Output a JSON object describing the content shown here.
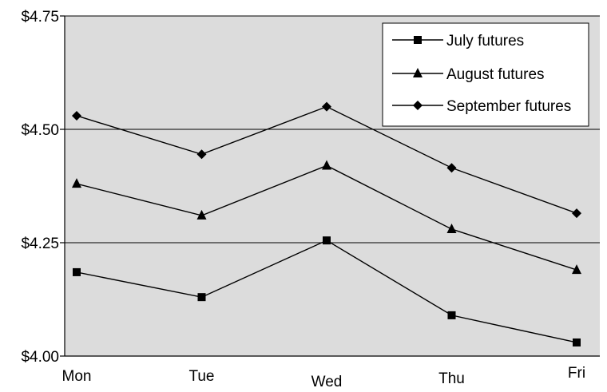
{
  "chart_data": {
    "type": "line",
    "categories": [
      "Mon",
      "Tue",
      "Wed",
      "Thu",
      "Fri"
    ],
    "ylim": [
      4.0,
      4.75
    ],
    "yticks": [
      4.0,
      4.25,
      4.5,
      4.75
    ],
    "ytick_labels": [
      "$4.00",
      "$4.25",
      "$4.50",
      "$4.75"
    ],
    "grid": true,
    "plot_background": "#dcdcdc",
    "line_color": "#000000",
    "legend_position": "top-right",
    "series": [
      {
        "name": "July futures",
        "marker": "square",
        "values": [
          4.185,
          4.13,
          4.255,
          4.09,
          4.03
        ]
      },
      {
        "name": "August futures",
        "marker": "triangle",
        "values": [
          4.38,
          4.31,
          4.42,
          4.28,
          4.19
        ]
      },
      {
        "name": "September futures",
        "marker": "diamond",
        "values": [
          4.53,
          4.445,
          4.55,
          4.415,
          4.315
        ]
      }
    ]
  }
}
